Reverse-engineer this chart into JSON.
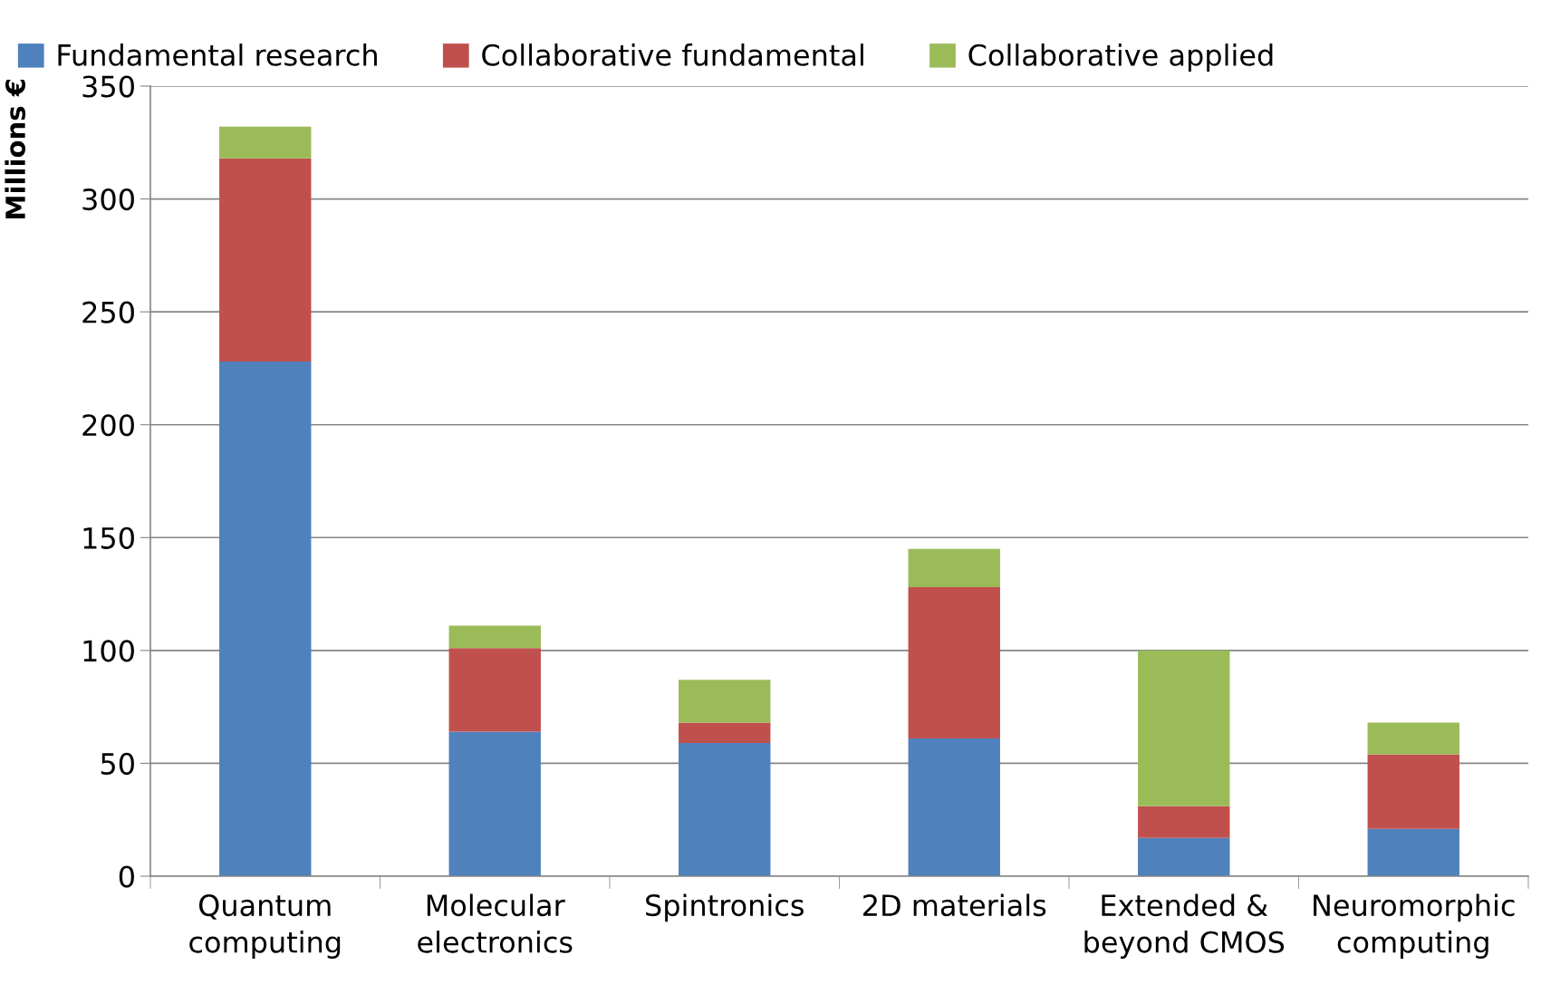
{
  "chart_data": {
    "type": "bar",
    "stacked": true,
    "ylabel": "Millions €",
    "categories": [
      "Quantum\ncomputing",
      "Molecular\nelectronics",
      "Spintronics",
      "2D materials",
      "Extended &\nbeyond CMOS",
      "Neuromorphic\ncomputing"
    ],
    "series": [
      {
        "name": "Fundamental research",
        "color": "#4f81bd",
        "values": [
          228,
          64,
          59,
          61,
          17,
          21
        ]
      },
      {
        "name": "Collaborative fundamental",
        "color": "#c0504d",
        "values": [
          90,
          37,
          9,
          67,
          14,
          33
        ]
      },
      {
        "name": "Collaborative applied",
        "color": "#9bbb59",
        "values": [
          14,
          10,
          19,
          17,
          69,
          14
        ]
      }
    ],
    "ylim": [
      0,
      350
    ],
    "yticks": [
      0,
      50,
      100,
      150,
      200,
      250,
      300,
      350
    ],
    "grid": "y",
    "legend": "top"
  }
}
